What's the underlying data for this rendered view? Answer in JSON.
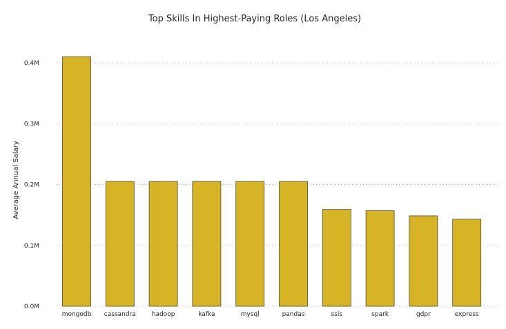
{
  "chart_data": {
    "type": "bar",
    "title": "Top Skills In Highest-Paying Roles (Los Angeles)",
    "xlabel": "",
    "ylabel": "Average Annual Salary",
    "categories": [
      "mongodb",
      "cassandra",
      "hadoop",
      "kafka",
      "mysql",
      "pandas",
      "ssis",
      "spark",
      "gdpr",
      "express"
    ],
    "values": [
      410000,
      205000,
      205000,
      205000,
      205000,
      205000,
      159000,
      157000,
      148500,
      143000
    ],
    "ylim": [
      0,
      400000
    ],
    "yticks": [
      0,
      100000,
      200000,
      300000,
      400000
    ],
    "ytick_labels": [
      "0.0M",
      "0.1M",
      "0.2M",
      "0.3M",
      "0.4M"
    ],
    "bar_color": "#D7B425",
    "grid": true,
    "legend": "none"
  }
}
